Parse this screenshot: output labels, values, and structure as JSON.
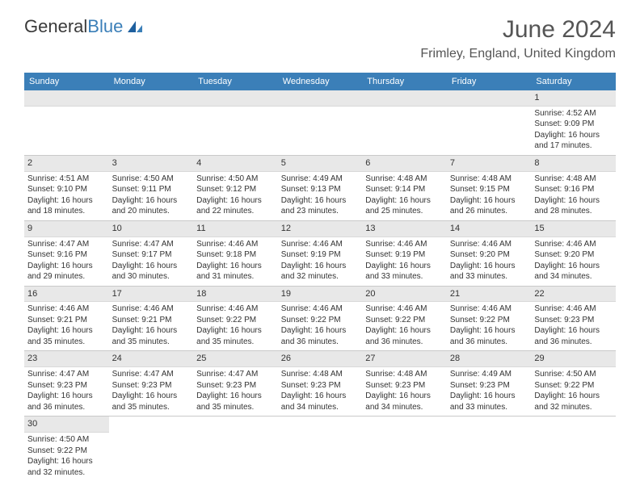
{
  "logo": {
    "text_part1": "General",
    "text_part2": "Blue"
  },
  "title": "June 2024",
  "location": "Frimley, England, United Kingdom",
  "colors": {
    "header_bg": "#3b7fb8",
    "header_text": "#ffffff",
    "daynum_bg": "#e8e8e8",
    "text": "#333333",
    "border": "#c9c9c9"
  },
  "weekdays": [
    "Sunday",
    "Monday",
    "Tuesday",
    "Wednesday",
    "Thursday",
    "Friday",
    "Saturday"
  ],
  "weeks": [
    [
      null,
      null,
      null,
      null,
      null,
      null,
      {
        "n": "1",
        "sr": "Sunrise: 4:52 AM",
        "ss": "Sunset: 9:09 PM",
        "d1": "Daylight: 16 hours",
        "d2": "and 17 minutes."
      }
    ],
    [
      {
        "n": "2",
        "sr": "Sunrise: 4:51 AM",
        "ss": "Sunset: 9:10 PM",
        "d1": "Daylight: 16 hours",
        "d2": "and 18 minutes."
      },
      {
        "n": "3",
        "sr": "Sunrise: 4:50 AM",
        "ss": "Sunset: 9:11 PM",
        "d1": "Daylight: 16 hours",
        "d2": "and 20 minutes."
      },
      {
        "n": "4",
        "sr": "Sunrise: 4:50 AM",
        "ss": "Sunset: 9:12 PM",
        "d1": "Daylight: 16 hours",
        "d2": "and 22 minutes."
      },
      {
        "n": "5",
        "sr": "Sunrise: 4:49 AM",
        "ss": "Sunset: 9:13 PM",
        "d1": "Daylight: 16 hours",
        "d2": "and 23 minutes."
      },
      {
        "n": "6",
        "sr": "Sunrise: 4:48 AM",
        "ss": "Sunset: 9:14 PM",
        "d1": "Daylight: 16 hours",
        "d2": "and 25 minutes."
      },
      {
        "n": "7",
        "sr": "Sunrise: 4:48 AM",
        "ss": "Sunset: 9:15 PM",
        "d1": "Daylight: 16 hours",
        "d2": "and 26 minutes."
      },
      {
        "n": "8",
        "sr": "Sunrise: 4:48 AM",
        "ss": "Sunset: 9:16 PM",
        "d1": "Daylight: 16 hours",
        "d2": "and 28 minutes."
      }
    ],
    [
      {
        "n": "9",
        "sr": "Sunrise: 4:47 AM",
        "ss": "Sunset: 9:16 PM",
        "d1": "Daylight: 16 hours",
        "d2": "and 29 minutes."
      },
      {
        "n": "10",
        "sr": "Sunrise: 4:47 AM",
        "ss": "Sunset: 9:17 PM",
        "d1": "Daylight: 16 hours",
        "d2": "and 30 minutes."
      },
      {
        "n": "11",
        "sr": "Sunrise: 4:46 AM",
        "ss": "Sunset: 9:18 PM",
        "d1": "Daylight: 16 hours",
        "d2": "and 31 minutes."
      },
      {
        "n": "12",
        "sr": "Sunrise: 4:46 AM",
        "ss": "Sunset: 9:19 PM",
        "d1": "Daylight: 16 hours",
        "d2": "and 32 minutes."
      },
      {
        "n": "13",
        "sr": "Sunrise: 4:46 AM",
        "ss": "Sunset: 9:19 PM",
        "d1": "Daylight: 16 hours",
        "d2": "and 33 minutes."
      },
      {
        "n": "14",
        "sr": "Sunrise: 4:46 AM",
        "ss": "Sunset: 9:20 PM",
        "d1": "Daylight: 16 hours",
        "d2": "and 33 minutes."
      },
      {
        "n": "15",
        "sr": "Sunrise: 4:46 AM",
        "ss": "Sunset: 9:20 PM",
        "d1": "Daylight: 16 hours",
        "d2": "and 34 minutes."
      }
    ],
    [
      {
        "n": "16",
        "sr": "Sunrise: 4:46 AM",
        "ss": "Sunset: 9:21 PM",
        "d1": "Daylight: 16 hours",
        "d2": "and 35 minutes."
      },
      {
        "n": "17",
        "sr": "Sunrise: 4:46 AM",
        "ss": "Sunset: 9:21 PM",
        "d1": "Daylight: 16 hours",
        "d2": "and 35 minutes."
      },
      {
        "n": "18",
        "sr": "Sunrise: 4:46 AM",
        "ss": "Sunset: 9:22 PM",
        "d1": "Daylight: 16 hours",
        "d2": "and 35 minutes."
      },
      {
        "n": "19",
        "sr": "Sunrise: 4:46 AM",
        "ss": "Sunset: 9:22 PM",
        "d1": "Daylight: 16 hours",
        "d2": "and 36 minutes."
      },
      {
        "n": "20",
        "sr": "Sunrise: 4:46 AM",
        "ss": "Sunset: 9:22 PM",
        "d1": "Daylight: 16 hours",
        "d2": "and 36 minutes."
      },
      {
        "n": "21",
        "sr": "Sunrise: 4:46 AM",
        "ss": "Sunset: 9:22 PM",
        "d1": "Daylight: 16 hours",
        "d2": "and 36 minutes."
      },
      {
        "n": "22",
        "sr": "Sunrise: 4:46 AM",
        "ss": "Sunset: 9:23 PM",
        "d1": "Daylight: 16 hours",
        "d2": "and 36 minutes."
      }
    ],
    [
      {
        "n": "23",
        "sr": "Sunrise: 4:47 AM",
        "ss": "Sunset: 9:23 PM",
        "d1": "Daylight: 16 hours",
        "d2": "and 36 minutes."
      },
      {
        "n": "24",
        "sr": "Sunrise: 4:47 AM",
        "ss": "Sunset: 9:23 PM",
        "d1": "Daylight: 16 hours",
        "d2": "and 35 minutes."
      },
      {
        "n": "25",
        "sr": "Sunrise: 4:47 AM",
        "ss": "Sunset: 9:23 PM",
        "d1": "Daylight: 16 hours",
        "d2": "and 35 minutes."
      },
      {
        "n": "26",
        "sr": "Sunrise: 4:48 AM",
        "ss": "Sunset: 9:23 PM",
        "d1": "Daylight: 16 hours",
        "d2": "and 34 minutes."
      },
      {
        "n": "27",
        "sr": "Sunrise: 4:48 AM",
        "ss": "Sunset: 9:23 PM",
        "d1": "Daylight: 16 hours",
        "d2": "and 34 minutes."
      },
      {
        "n": "28",
        "sr": "Sunrise: 4:49 AM",
        "ss": "Sunset: 9:23 PM",
        "d1": "Daylight: 16 hours",
        "d2": "and 33 minutes."
      },
      {
        "n": "29",
        "sr": "Sunrise: 4:50 AM",
        "ss": "Sunset: 9:22 PM",
        "d1": "Daylight: 16 hours",
        "d2": "and 32 minutes."
      }
    ],
    [
      {
        "n": "30",
        "sr": "Sunrise: 4:50 AM",
        "ss": "Sunset: 9:22 PM",
        "d1": "Daylight: 16 hours",
        "d2": "and 32 minutes."
      },
      null,
      null,
      null,
      null,
      null,
      null
    ]
  ]
}
